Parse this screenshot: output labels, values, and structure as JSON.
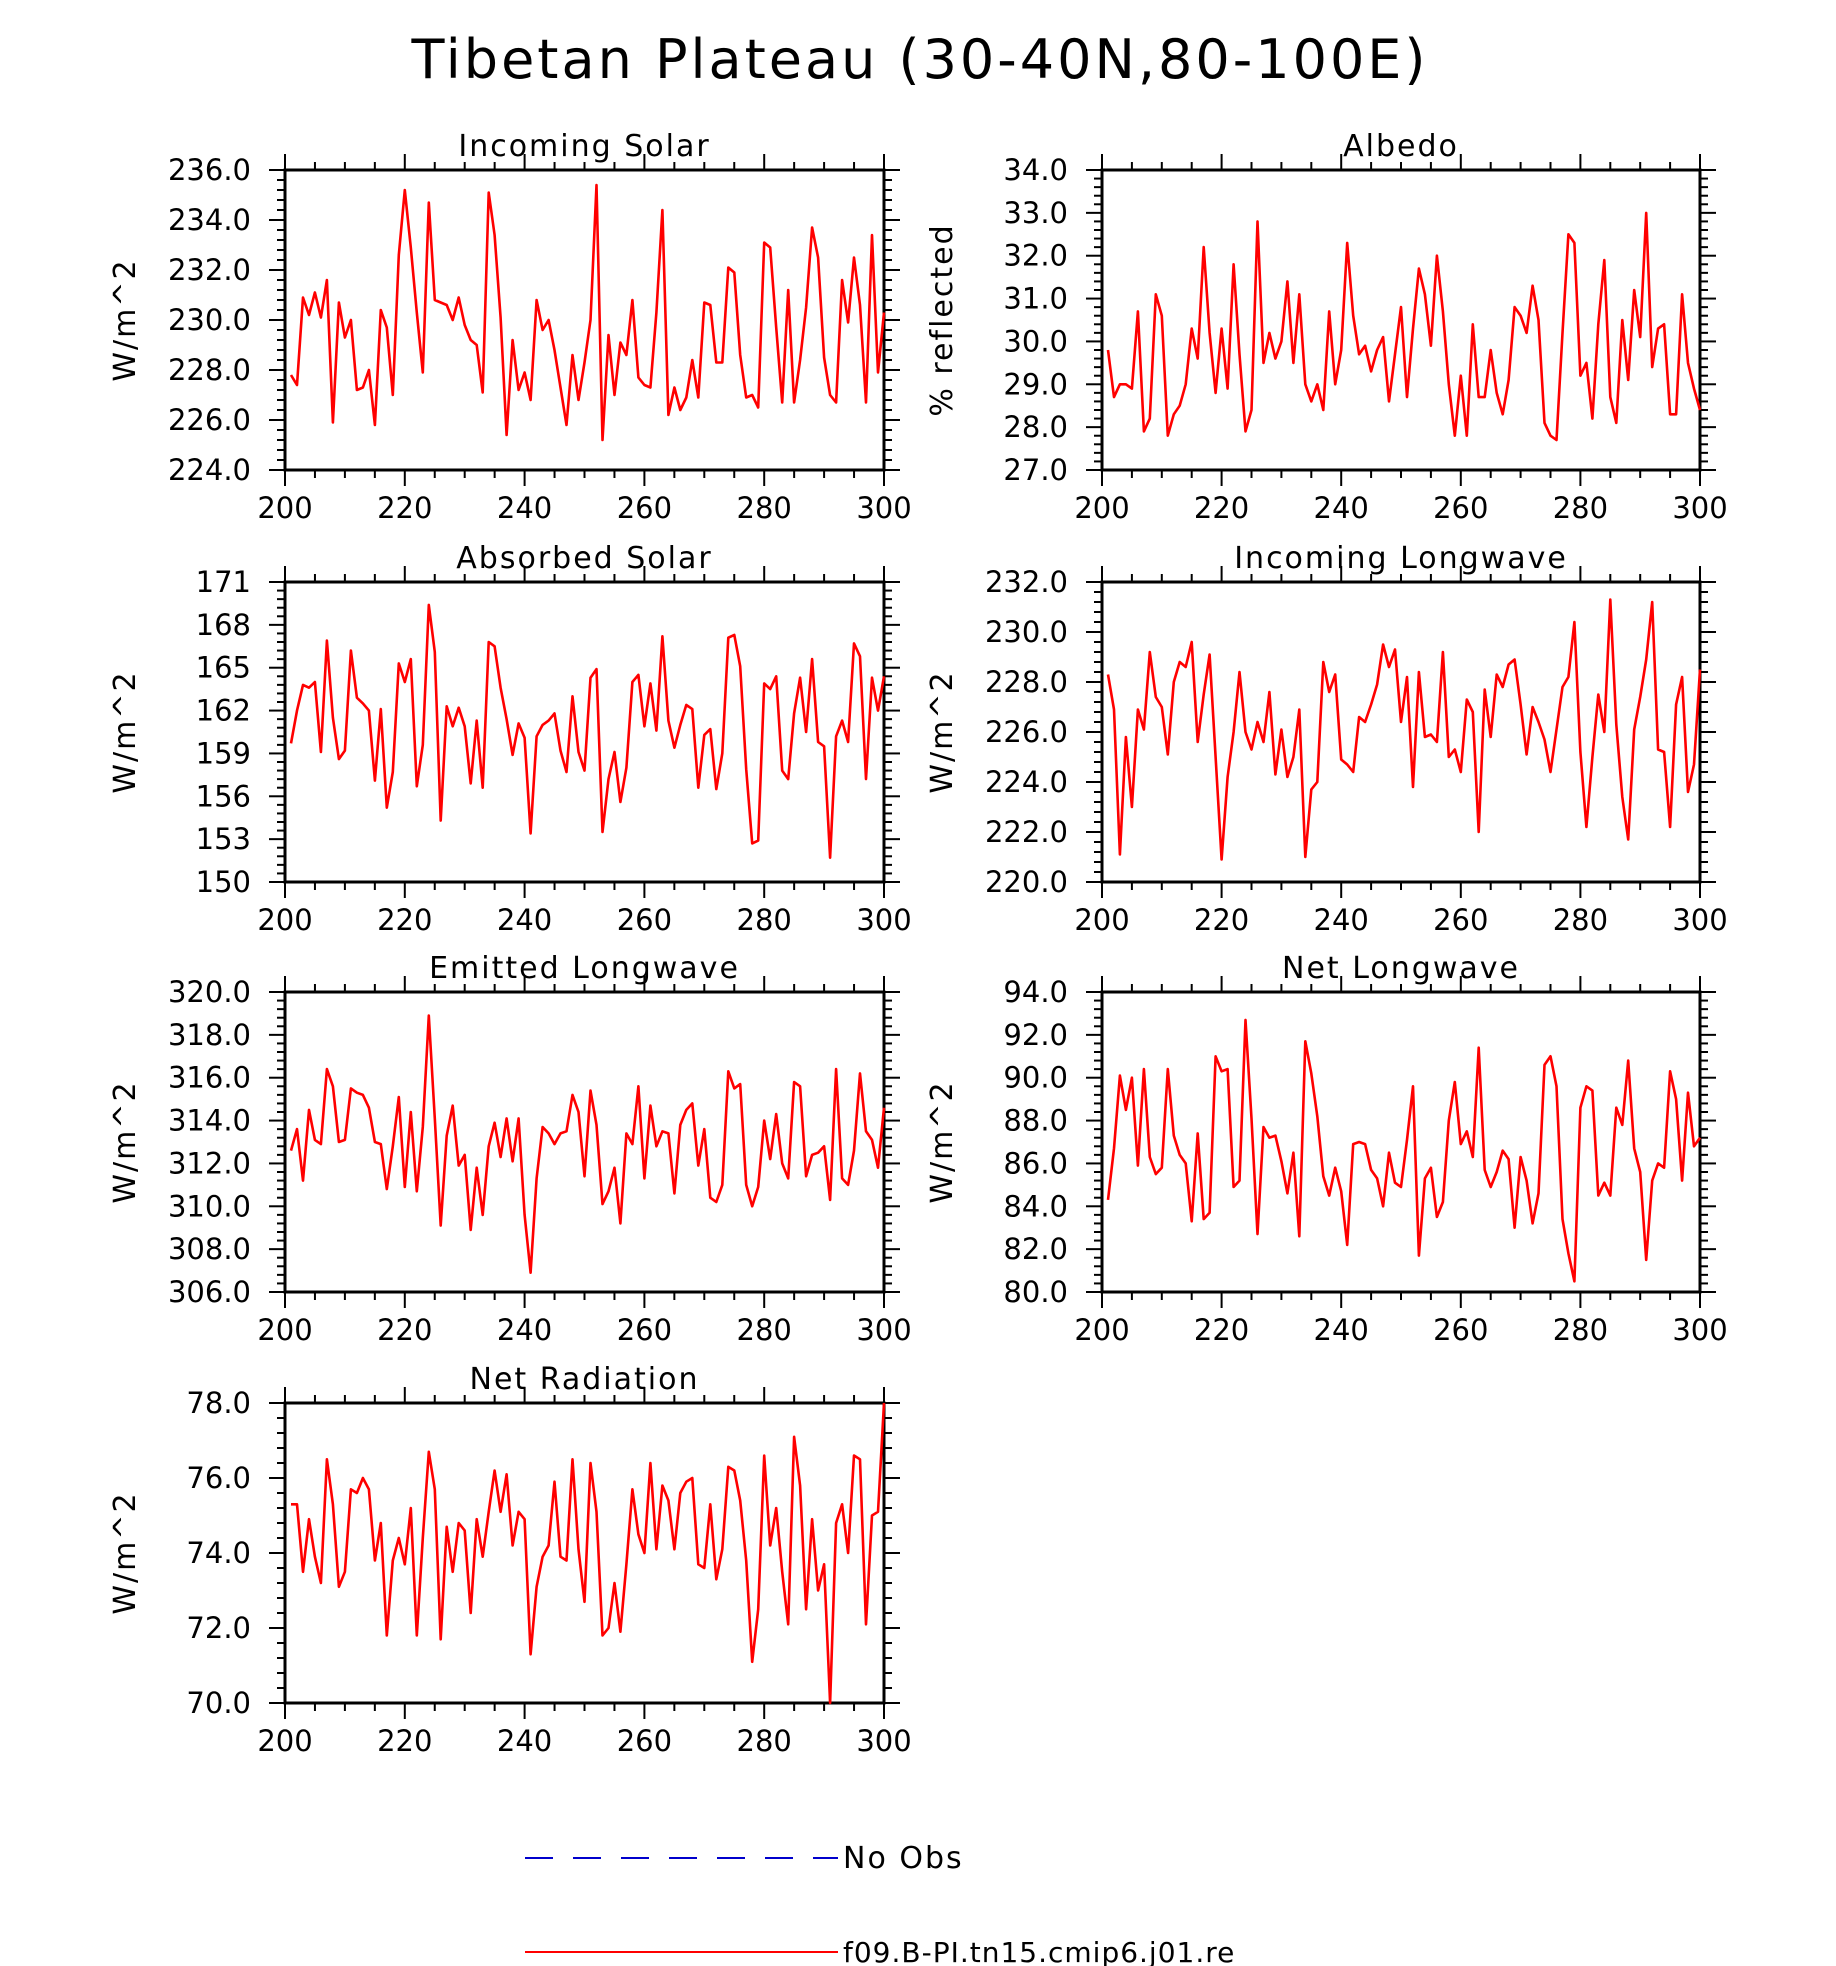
{
  "figure": {
    "title": "Tibetan Plateau (30-40N,80-100E)",
    "line_color": "#ff0000",
    "obs_color": "#0000cc",
    "axis_color": "#000000"
  },
  "legend": {
    "obs_label": "No Obs",
    "model_label": "f09.B-PI.tn15.cmip6.j01.re"
  },
  "chart_data": [
    {
      "type": "line",
      "title": "Incoming Solar",
      "ylabel": "W/m^2",
      "xlim": [
        200,
        300
      ],
      "ylim": [
        224.0,
        236.0
      ],
      "xticks": [
        200,
        220,
        240,
        260,
        280,
        300
      ],
      "yticks": [
        224.0,
        226.0,
        228.0,
        230.0,
        232.0,
        234.0,
        236.0
      ],
      "ytick_labels": [
        "224.0",
        "226.0",
        "228.0",
        "230.0",
        "232.0",
        "234.0",
        "236.0"
      ],
      "x_start": 201,
      "series": [
        {
          "name": "f09.B-PI.tn15.cmip6.j01.re",
          "values": [
            227.8,
            227.4,
            230.9,
            230.2,
            231.1,
            230.1,
            231.6,
            225.9,
            230.7,
            229.3,
            230.0,
            227.2,
            227.3,
            228.0,
            225.8,
            230.4,
            229.7,
            227.0,
            232.6,
            235.2,
            232.9,
            230.3,
            227.9,
            234.7,
            230.8,
            230.7,
            230.6,
            230.0,
            230.9,
            229.8,
            229.2,
            229.0,
            227.1,
            235.1,
            233.4,
            230.1,
            225.4,
            229.2,
            227.2,
            227.9,
            226.8,
            230.8,
            229.6,
            230.0,
            228.8,
            227.3,
            225.8,
            228.6,
            226.8,
            228.3,
            230.0,
            235.4,
            225.2,
            229.4,
            227.0,
            229.1,
            228.6,
            230.8,
            227.7,
            227.4,
            227.3,
            230.3,
            234.4,
            226.2,
            227.3,
            226.4,
            226.9,
            228.4,
            226.9,
            230.7,
            230.6,
            228.3,
            228.3,
            232.1,
            231.9,
            228.6,
            226.9,
            227.0,
            226.5,
            233.1,
            232.9,
            229.7,
            226.7,
            231.2,
            226.7,
            228.4,
            230.5,
            233.7,
            232.5,
            228.5,
            227.0,
            226.7,
            231.6,
            229.9,
            232.5,
            230.6,
            226.7,
            233.4,
            227.9,
            230.3
          ]
        }
      ]
    },
    {
      "type": "line",
      "title": "Albedo",
      "ylabel": "% reflected",
      "xlim": [
        200,
        300
      ],
      "ylim": [
        27.0,
        34.0
      ],
      "xticks": [
        200,
        220,
        240,
        260,
        280,
        300
      ],
      "yticks": [
        27.0,
        28.0,
        29.0,
        30.0,
        31.0,
        32.0,
        33.0,
        34.0
      ],
      "ytick_labels": [
        "27.0",
        "28.0",
        "29.0",
        "30.0",
        "31.0",
        "32.0",
        "33.0",
        "34.0"
      ],
      "x_start": 201,
      "series": [
        {
          "name": "f09.B-PI.tn15.cmip6.j01.re",
          "values": [
            29.8,
            28.7,
            29.0,
            29.0,
            28.9,
            30.7,
            27.9,
            28.2,
            31.1,
            30.6,
            27.8,
            28.3,
            28.5,
            29.0,
            30.3,
            29.6,
            32.2,
            30.2,
            28.8,
            30.3,
            28.9,
            31.8,
            29.7,
            27.9,
            28.4,
            32.8,
            29.5,
            30.2,
            29.6,
            30.0,
            31.4,
            29.5,
            31.1,
            29.0,
            28.6,
            29.0,
            28.4,
            30.7,
            29.0,
            29.8,
            32.3,
            30.6,
            29.7,
            29.9,
            29.3,
            29.8,
            30.1,
            28.6,
            29.7,
            30.8,
            28.7,
            30.3,
            31.7,
            31.1,
            29.9,
            32.0,
            30.7,
            29.0,
            27.8,
            29.2,
            27.8,
            30.4,
            28.7,
            28.7,
            29.8,
            28.8,
            28.3,
            29.1,
            30.8,
            30.6,
            30.2,
            31.3,
            30.5,
            28.1,
            27.8,
            27.7,
            30.2,
            32.5,
            32.3,
            29.2,
            29.5,
            28.2,
            30.4,
            31.9,
            28.7,
            28.1,
            30.5,
            29.1,
            31.2,
            30.1,
            33.0,
            29.4,
            30.3,
            30.4,
            28.3,
            28.3,
            31.1,
            29.5,
            28.9,
            28.4
          ]
        }
      ]
    },
    {
      "type": "line",
      "title": "Absorbed Solar",
      "ylabel": "W/m^2",
      "xlim": [
        200,
        300
      ],
      "ylim": [
        150,
        171
      ],
      "xticks": [
        200,
        220,
        240,
        260,
        280,
        300
      ],
      "yticks": [
        150,
        153,
        156,
        159,
        162,
        165,
        168,
        171
      ],
      "ytick_labels": [
        "150",
        "153",
        "156",
        "159",
        "162",
        "165",
        "168",
        "171"
      ],
      "x_start": 201,
      "series": [
        {
          "name": "f09.B-PI.tn15.cmip6.j01.re",
          "values": [
            159.7,
            162.0,
            163.8,
            163.6,
            164.0,
            159.1,
            166.9,
            161.5,
            158.6,
            159.2,
            166.2,
            162.9,
            162.5,
            162.0,
            157.1,
            162.1,
            155.2,
            157.7,
            165.3,
            164.0,
            165.6,
            156.7,
            159.6,
            169.4,
            166.1,
            154.3,
            162.3,
            160.9,
            162.2,
            160.9,
            156.9,
            161.3,
            156.6,
            166.8,
            166.5,
            163.6,
            161.4,
            158.9,
            161.1,
            160.1,
            153.4,
            160.2,
            161.0,
            161.3,
            161.8,
            159.2,
            157.7,
            163.0,
            159.1,
            157.8,
            164.3,
            164.9,
            153.5,
            157.2,
            159.1,
            155.6,
            158.0,
            164.0,
            164.5,
            160.9,
            163.9,
            160.6,
            167.2,
            161.3,
            159.4,
            161.0,
            162.4,
            162.1,
            156.6,
            160.3,
            160.7,
            156.5,
            159.0,
            167.1,
            167.3,
            165.1,
            157.9,
            152.7,
            152.9,
            163.9,
            163.5,
            164.4,
            157.8,
            157.2,
            161.8,
            164.3,
            160.5,
            165.6,
            159.8,
            159.5,
            151.7,
            160.2,
            161.3,
            159.8,
            166.7,
            165.8,
            157.2,
            164.3,
            162.0,
            164.4
          ]
        }
      ]
    },
    {
      "type": "line",
      "title": "Incoming Longwave",
      "ylabel": "W/m^2",
      "xlim": [
        200,
        300
      ],
      "ylim": [
        220.0,
        232.0
      ],
      "xticks": [
        200,
        220,
        240,
        260,
        280,
        300
      ],
      "yticks": [
        220.0,
        222.0,
        224.0,
        226.0,
        228.0,
        230.0,
        232.0
      ],
      "ytick_labels": [
        "220.0",
        "222.0",
        "224.0",
        "226.0",
        "228.0",
        "230.0",
        "232.0"
      ],
      "x_start": 201,
      "series": [
        {
          "name": "f09.B-PI.tn15.cmip6.j01.re",
          "values": [
            228.3,
            226.9,
            221.1,
            225.8,
            223.0,
            226.9,
            226.1,
            229.2,
            227.4,
            227.0,
            225.1,
            228.0,
            228.8,
            228.6,
            229.6,
            225.6,
            227.5,
            229.1,
            225.0,
            220.9,
            224.2,
            226.0,
            228.4,
            226.0,
            225.3,
            226.4,
            225.6,
            227.6,
            224.3,
            226.1,
            224.2,
            225.0,
            226.9,
            221.0,
            223.7,
            224.0,
            228.8,
            227.6,
            228.3,
            224.9,
            224.7,
            224.4,
            226.6,
            226.4,
            227.1,
            227.9,
            229.5,
            228.6,
            229.3,
            226.4,
            228.2,
            223.8,
            228.4,
            225.8,
            225.9,
            225.6,
            229.2,
            225.0,
            225.3,
            224.4,
            227.3,
            226.8,
            222.0,
            227.7,
            225.8,
            228.3,
            227.8,
            228.7,
            228.9,
            227.1,
            225.1,
            227.0,
            226.4,
            225.7,
            224.4,
            226.1,
            227.8,
            228.2,
            230.4,
            225.2,
            222.2,
            225.0,
            227.5,
            226.0,
            231.3,
            226.3,
            223.4,
            221.7,
            226.1,
            227.4,
            228.9,
            231.2,
            225.3,
            225.2,
            222.2,
            227.1,
            228.2,
            223.6,
            224.7,
            228.5
          ]
        }
      ]
    },
    {
      "type": "line",
      "title": "Emitted Longwave",
      "ylabel": "W/m^2",
      "xlim": [
        200,
        300
      ],
      "ylim": [
        306.0,
        320.0
      ],
      "xticks": [
        200,
        220,
        240,
        260,
        280,
        300
      ],
      "yticks": [
        306.0,
        308.0,
        310.0,
        312.0,
        314.0,
        316.0,
        318.0,
        320.0
      ],
      "ytick_labels": [
        "306.0",
        "308.0",
        "310.0",
        "312.0",
        "314.0",
        "316.0",
        "318.0",
        "320.0"
      ],
      "x_start": 201,
      "series": [
        {
          "name": "f09.B-PI.tn15.cmip6.j01.re",
          "values": [
            312.6,
            313.6,
            311.2,
            314.5,
            313.1,
            312.9,
            316.4,
            315.6,
            313.0,
            313.1,
            315.5,
            315.3,
            315.2,
            314.6,
            313.0,
            312.9,
            310.8,
            312.8,
            315.1,
            310.9,
            314.4,
            310.7,
            313.7,
            318.9,
            314.1,
            309.1,
            313.3,
            314.7,
            311.9,
            312.4,
            308.9,
            311.8,
            309.6,
            312.8,
            313.9,
            312.3,
            314.1,
            312.1,
            314.1,
            309.6,
            306.9,
            311.3,
            313.7,
            313.4,
            312.9,
            313.4,
            313.5,
            315.2,
            314.4,
            311.4,
            315.4,
            313.8,
            310.1,
            310.7,
            311.8,
            309.2,
            313.4,
            312.9,
            315.6,
            311.3,
            314.7,
            312.8,
            313.5,
            313.4,
            310.6,
            313.8,
            314.5,
            314.8,
            311.9,
            313.6,
            310.4,
            310.2,
            311.0,
            316.3,
            315.5,
            315.7,
            311.0,
            310.0,
            310.9,
            314.0,
            312.2,
            314.3,
            312.0,
            311.3,
            315.8,
            315.6,
            311.4,
            312.4,
            312.5,
            312.8,
            310.3,
            316.4,
            311.3,
            311.0,
            312.6,
            316.2,
            313.5,
            313.1,
            311.8,
            314.6
          ]
        }
      ]
    },
    {
      "type": "line",
      "title": "Net Longwave",
      "ylabel": "W/m^2",
      "xlim": [
        200,
        300
      ],
      "ylim": [
        80.0,
        94.0
      ],
      "xticks": [
        200,
        220,
        240,
        260,
        280,
        300
      ],
      "yticks": [
        80.0,
        82.0,
        84.0,
        86.0,
        88.0,
        90.0,
        92.0,
        94.0
      ],
      "ytick_labels": [
        "80.0",
        "82.0",
        "84.0",
        "86.0",
        "88.0",
        "90.0",
        "92.0",
        "94.0"
      ],
      "x_start": 201,
      "series": [
        {
          "name": "f09.B-PI.tn15.cmip6.j01.re",
          "values": [
            84.3,
            86.7,
            90.1,
            88.5,
            90.0,
            85.9,
            90.4,
            86.3,
            85.5,
            85.8,
            90.4,
            87.3,
            86.4,
            86.0,
            83.3,
            87.4,
            83.4,
            83.7,
            91.0,
            90.3,
            90.4,
            84.9,
            85.2,
            92.7,
            88.1,
            82.7,
            87.7,
            87.2,
            87.3,
            86.1,
            84.6,
            86.5,
            82.6,
            91.7,
            90.2,
            88.2,
            85.4,
            84.5,
            85.8,
            84.7,
            82.2,
            86.9,
            87.0,
            86.9,
            85.7,
            85.3,
            84.0,
            86.5,
            85.1,
            84.9,
            87.1,
            89.6,
            81.7,
            85.3,
            85.8,
            83.5,
            84.2,
            88.0,
            89.8,
            86.9,
            87.5,
            86.3,
            91.4,
            85.7,
            84.9,
            85.6,
            86.6,
            86.2,
            83.0,
            86.3,
            85.2,
            83.2,
            84.6,
            90.6,
            91.0,
            89.6,
            83.4,
            81.8,
            80.5,
            88.6,
            89.6,
            89.4,
            84.5,
            85.1,
            84.5,
            88.6,
            87.8,
            90.8,
            86.7,
            85.6,
            81.5,
            85.2,
            86.0,
            85.8,
            90.3,
            89.0,
            85.2,
            89.3,
            86.8,
            87.2
          ]
        }
      ]
    },
    {
      "type": "line",
      "title": "Net Radiation",
      "ylabel": "W/m^2",
      "xlim": [
        200,
        300
      ],
      "ylim": [
        70.0,
        78.0
      ],
      "xticks": [
        200,
        220,
        240,
        260,
        280,
        300
      ],
      "yticks": [
        70.0,
        72.0,
        74.0,
        76.0,
        78.0
      ],
      "ytick_labels": [
        "70.0",
        "72.0",
        "74.0",
        "76.0",
        "78.0"
      ],
      "x_start": 201,
      "series": [
        {
          "name": "f09.B-PI.tn15.cmip6.j01.re",
          "values": [
            75.3,
            75.3,
            73.5,
            74.9,
            73.9,
            73.2,
            76.5,
            75.3,
            73.1,
            73.5,
            75.7,
            75.6,
            76.0,
            75.7,
            73.8,
            74.8,
            71.8,
            73.8,
            74.4,
            73.7,
            75.2,
            71.8,
            74.4,
            76.7,
            75.7,
            71.7,
            74.7,
            73.5,
            74.8,
            74.6,
            72.4,
            74.9,
            73.9,
            75.1,
            76.2,
            75.1,
            76.1,
            74.2,
            75.1,
            74.9,
            71.3,
            73.1,
            73.9,
            74.2,
            75.9,
            73.9,
            73.8,
            76.5,
            74.1,
            72.7,
            76.4,
            75.1,
            71.8,
            72.0,
            73.2,
            71.9,
            73.7,
            75.7,
            74.5,
            74.0,
            76.4,
            74.1,
            75.8,
            75.4,
            74.1,
            75.6,
            75.9,
            76.0,
            73.7,
            73.6,
            75.3,
            73.3,
            74.1,
            76.3,
            76.2,
            75.4,
            73.8,
            71.1,
            72.5,
            76.6,
            74.2,
            75.2,
            73.5,
            72.1,
            77.1,
            75.8,
            72.5,
            74.9,
            73.0,
            73.7,
            70.0,
            74.8,
            75.3,
            74.0,
            76.6,
            76.5,
            72.1,
            75.0,
            75.1,
            78.0
          ]
        }
      ]
    }
  ]
}
